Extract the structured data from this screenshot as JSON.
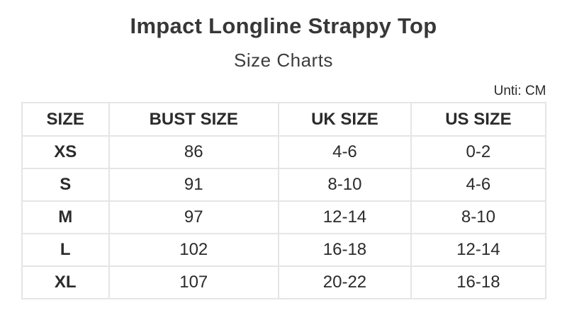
{
  "page": {
    "title": "Impact Longline Strappy Top",
    "subtitle": "Size Charts",
    "unit_label": "Unti: CM"
  },
  "colors": {
    "text": "#2f2f2f",
    "border": "#e5e5e5",
    "background": "#ffffff"
  },
  "chart_data": {
    "type": "table",
    "title": "Impact Longline Strappy Top",
    "subtitle": "Size Charts",
    "unit": "CM",
    "columns": [
      "SIZE",
      "BUST SIZE",
      "UK SIZE",
      "US SIZE"
    ],
    "rows": [
      [
        "XS",
        "86",
        "4-6",
        "0-2"
      ],
      [
        "S",
        "91",
        "8-10",
        "4-6"
      ],
      [
        "M",
        "97",
        "12-14",
        "8-10"
      ],
      [
        "L",
        "102",
        "16-18",
        "12-14"
      ],
      [
        "XL",
        "107",
        "20-22",
        "16-18"
      ]
    ]
  }
}
